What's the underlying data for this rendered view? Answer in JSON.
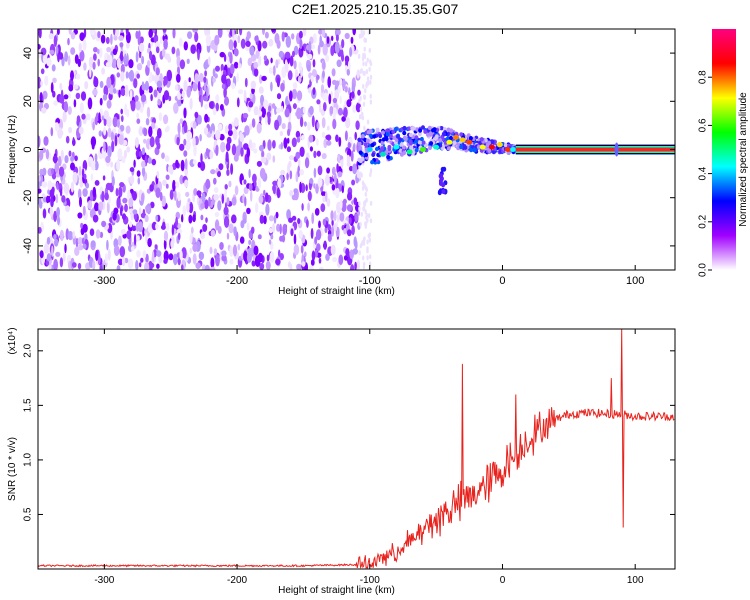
{
  "title": "C2E1.2025.210.15.35.G07",
  "chart_data": [
    {
      "type": "heatmap",
      "xlabel": "Height of straight line (km)",
      "ylabel": "Frequency (Hz)",
      "xlim": [
        -350,
        130
      ],
      "ylim": [
        -50,
        50
      ],
      "xticks": [
        -300,
        -200,
        -100,
        0,
        100
      ],
      "yticks": [
        -40,
        -20,
        0,
        20,
        40
      ],
      "colorbar": {
        "label": "Normalized spectral amplitude",
        "range": [
          0,
          1
        ],
        "ticks": [
          "0.0",
          "0.2",
          "0.4",
          "0.6",
          "0.8"
        ],
        "colormap": [
          "#ffffff",
          "#a000ff",
          "#0000ff",
          "#00ffff",
          "#00ff00",
          "#ffff00",
          "#ff0000",
          "#ff0080"
        ]
      },
      "regions": [
        {
          "x_range": [
            -350,
            -108
          ],
          "description_level": "noise",
          "amplitude": 0.15
        },
        {
          "x_range": [
            -108,
            10
          ],
          "frequency_hz_center": [
            0,
            3,
            5,
            2,
            0
          ],
          "amplitude": 0.4
        },
        {
          "x_range": [
            10,
            130
          ],
          "frequency_hz": 0,
          "amplitude": 1.0
        }
      ]
    },
    {
      "type": "line",
      "xlabel": "Height of straight line (km)",
      "ylabel": "SNR (10 * v/v)",
      "y_multiplier": "(x10⁴)",
      "xlim": [
        -350,
        130
      ],
      "ylim": [
        0,
        2.2
      ],
      "xticks": [
        -300,
        -200,
        -100,
        0,
        100
      ],
      "yticks": [
        "0.5",
        "1.0",
        "1.5",
        "2.0"
      ],
      "series_color": "#e8221c",
      "x": [
        -350,
        -300,
        -250,
        -200,
        -150,
        -110,
        -100,
        -90,
        -80,
        -70,
        -60,
        -50,
        -40,
        -30,
        -20,
        -10,
        0,
        10,
        20,
        30,
        40,
        50,
        60,
        70,
        80,
        90,
        100,
        110,
        120,
        130
      ],
      "values": [
        0.03,
        0.03,
        0.03,
        0.03,
        0.03,
        0.04,
        0.05,
        0.1,
        0.15,
        0.25,
        0.35,
        0.45,
        0.55,
        0.62,
        0.7,
        0.8,
        0.92,
        1.05,
        1.2,
        1.3,
        1.37,
        1.42,
        1.43,
        1.43,
        1.42,
        1.42,
        1.4,
        1.4,
        1.4,
        1.4
      ],
      "spikes": [
        {
          "x": -30,
          "value": 1.88
        },
        {
          "x": 10,
          "value": 1.6
        },
        {
          "x": 82,
          "value": 1.75
        },
        {
          "x": 90,
          "value": 2.2
        },
        {
          "x": 91,
          "value": 0.38
        }
      ]
    }
  ]
}
